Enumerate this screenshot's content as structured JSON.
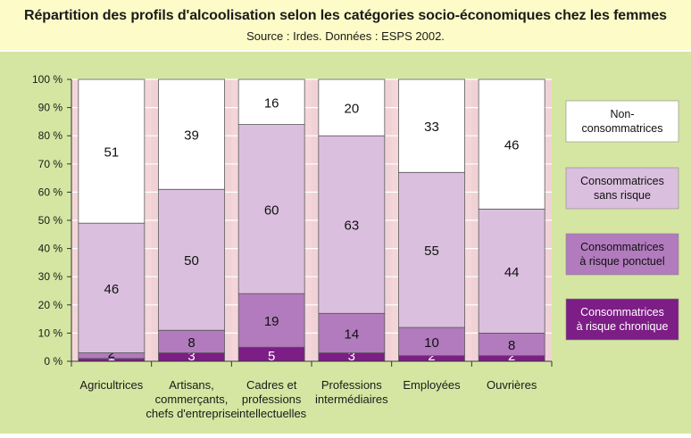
{
  "header": {
    "title": "Répartition des profils d'alcoolisation selon les catégories socio-économiques chez les femmes",
    "subtitle": "Source : Irdes. Données : ESPS 2002."
  },
  "colors": {
    "header_bg": "#fdfbc7",
    "chart_bg": "#d5e6a2",
    "plot_bg": "#f4d6d9",
    "grid": "#ffffff",
    "text": "#1a1a1a"
  },
  "chart_data": {
    "type": "bar",
    "stacked": true,
    "percent": true,
    "title": "Répartition des profils d'alcoolisation selon les catégories socio-économiques chez les femmes",
    "subtitle": "Source : Irdes. Données : ESPS 2002.",
    "categories": [
      [
        "Agricultrices"
      ],
      [
        "Artisans,",
        "commerçants,",
        "chefs d'entreprise"
      ],
      [
        "Cadres et",
        "professions",
        "intellectuelles"
      ],
      [
        "Professions",
        "intermédiaires"
      ],
      [
        "Employées"
      ],
      [
        "Ouvrières"
      ]
    ],
    "ylim": [
      0,
      100
    ],
    "yticks": [
      "0 %",
      "10 %",
      "20 %",
      "30 %",
      "40 %",
      "50 %",
      "60 %",
      "70 %",
      "80 %",
      "90 %",
      "100 %"
    ],
    "grid": true,
    "legend_position": "right",
    "series": [
      {
        "name": "Consommatrices à risque chronique",
        "legend_lines": [
          "Consommatrices",
          "à risque chronique"
        ],
        "values": [
          1,
          3,
          5,
          3,
          2,
          2
        ],
        "color": "#7d1d86",
        "label_color": "#ffffff"
      },
      {
        "name": "Consommatrices à risque ponctuel",
        "legend_lines": [
          "Consommatrices",
          "à risque ponctuel"
        ],
        "values": [
          2,
          8,
          19,
          14,
          10,
          8
        ],
        "color": "#b17bbd",
        "label_color": "#111111"
      },
      {
        "name": "Consommatrices sans risque",
        "legend_lines": [
          "Consommatrices",
          "sans risque"
        ],
        "values": [
          46,
          50,
          60,
          63,
          55,
          44
        ],
        "color": "#dbbfdf",
        "label_color": "#111111"
      },
      {
        "name": "Non-consommatrices",
        "legend_lines": [
          "Non-",
          "consommatrices"
        ],
        "values": [
          51,
          39,
          16,
          20,
          33,
          46
        ],
        "color": "#ffffff",
        "label_color": "#111111"
      }
    ]
  }
}
